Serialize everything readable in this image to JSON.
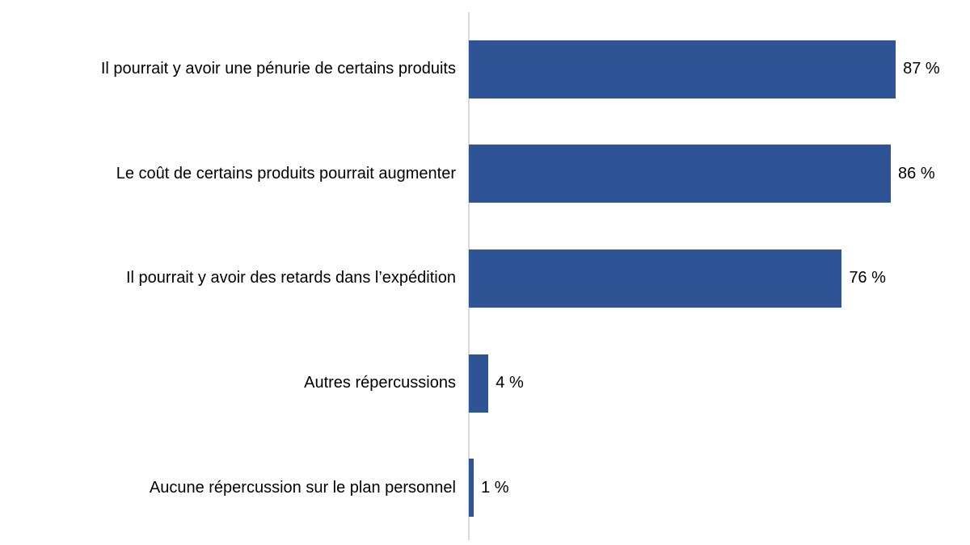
{
  "chart_data": {
    "type": "bar",
    "orientation": "horizontal",
    "title": "",
    "xlabel": "",
    "ylabel": "",
    "xlim": [
      0,
      100
    ],
    "grid": false,
    "legend": false,
    "categories": [
      "Il pourrait y avoir une pénurie de certains produits",
      "Le coût de certains produits pourrait augmenter",
      "Il pourrait y avoir des retards dans l’expédition",
      "Autres répercussions",
      "Aucune répercussion sur le plan personnel"
    ],
    "values": [
      87,
      86,
      76,
      4,
      1
    ],
    "display_values": [
      "87 %",
      "86 %",
      "76 %",
      "4 %",
      "1 %"
    ],
    "bar_color": "#2F5496",
    "axis_line_color": "#D9D9D9",
    "text_color": "#000000",
    "background_color": "#FFFFFF"
  }
}
